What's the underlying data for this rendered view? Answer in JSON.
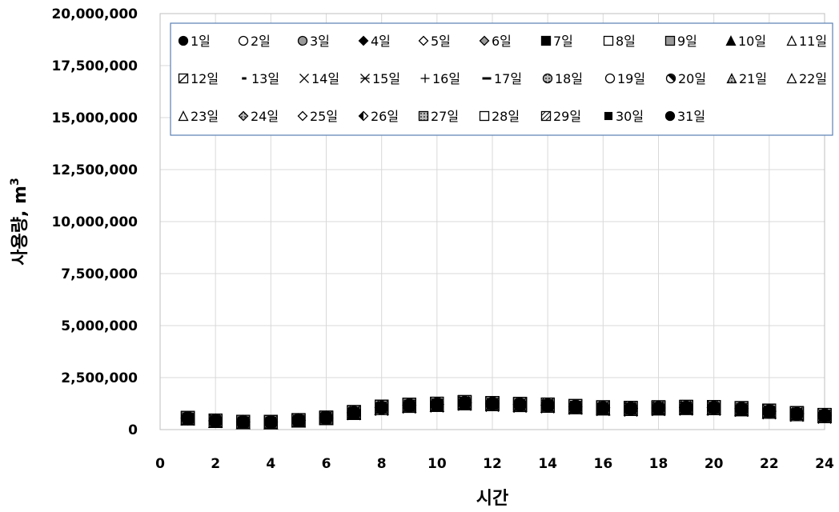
{
  "chart_data": {
    "type": "scatter",
    "title": "",
    "xlabel": "시간",
    "ylabel": "사용량, m³",
    "xlim": [
      0,
      24
    ],
    "ylim": [
      0,
      20000000
    ],
    "x_ticks": [
      "0",
      "2",
      "4",
      "6",
      "8",
      "10",
      "12",
      "14",
      "16",
      "18",
      "20",
      "22",
      "24"
    ],
    "y_ticks": [
      "0",
      "2,500,000",
      "5,000,000",
      "7,500,000",
      "10,000,000",
      "12,500,000",
      "15,000,000",
      "17,500,000",
      "20,000,000"
    ],
    "grid": true,
    "legend_position": "top",
    "x": [
      1,
      2,
      3,
      4,
      5,
      6,
      7,
      8,
      9,
      10,
      11,
      12,
      13,
      14,
      15,
      16,
      17,
      18,
      19,
      20,
      21,
      22,
      23,
      24
    ],
    "series": [
      {
        "name": "1일",
        "marker": "circle-filled",
        "values": [
          550000,
          420000,
          360000,
          360000,
          440000,
          560000,
          800000,
          1050000,
          1150000,
          1200000,
          1280000,
          1230000,
          1200000,
          1170000,
          1100000,
          1040000,
          1010000,
          1040000,
          1060000,
          1050000,
          1000000,
          880000,
          760000,
          670000
        ]
      },
      {
        "name": "2일",
        "marker": "circle-open",
        "values": [
          560000,
          430000,
          370000,
          370000,
          450000,
          570000,
          820000,
          1080000,
          1170000,
          1220000,
          1300000,
          1250000,
          1210000,
          1180000,
          1110000,
          1050000,
          1020000,
          1050000,
          1070000,
          1060000,
          1010000,
          890000,
          770000,
          680000
        ]
      },
      {
        "name": "3일",
        "marker": "circle-gray",
        "values": [
          540000,
          420000,
          360000,
          355000,
          440000,
          560000,
          810000,
          1060000,
          1160000,
          1210000,
          1290000,
          1240000,
          1200000,
          1170000,
          1100000,
          1040000,
          1010000,
          1040000,
          1060000,
          1050000,
          1000000,
          880000,
          760000,
          670000
        ]
      },
      {
        "name": "4일",
        "marker": "diamond-filled",
        "values": [
          550000,
          425000,
          365000,
          360000,
          445000,
          565000,
          815000,
          1070000,
          1165000,
          1215000,
          1295000,
          1245000,
          1205000,
          1175000,
          1105000,
          1045000,
          1015000,
          1045000,
          1065000,
          1055000,
          1005000,
          885000,
          765000,
          675000
        ]
      },
      {
        "name": "5일",
        "marker": "diamond-open",
        "values": [
          545000,
          420000,
          360000,
          358000,
          442000,
          562000,
          812000,
          1065000,
          1162000,
          1212000,
          1292000,
          1242000,
          1202000,
          1172000,
          1102000,
          1042000,
          1012000,
          1042000,
          1062000,
          1052000,
          1002000,
          882000,
          762000,
          672000
        ]
      },
      {
        "name": "6일",
        "marker": "diamond-gray",
        "values": [
          555000,
          428000,
          368000,
          362000,
          448000,
          568000,
          818000,
          1075000,
          1168000,
          1218000,
          1298000,
          1248000,
          1208000,
          1178000,
          1108000,
          1048000,
          1018000,
          1048000,
          1068000,
          1058000,
          1008000,
          888000,
          768000,
          678000
        ]
      },
      {
        "name": "7일",
        "marker": "square-filled",
        "values": [
          560000,
          430000,
          370000,
          365000,
          450000,
          570000,
          830000,
          1090000,
          1180000,
          1230000,
          1310000,
          1260000,
          1220000,
          1190000,
          1120000,
          1060000,
          1030000,
          1060000,
          1080000,
          1070000,
          1020000,
          900000,
          780000,
          690000
        ]
      },
      {
        "name": "8일",
        "marker": "square-open",
        "values": [
          565000,
          435000,
          375000,
          370000,
          455000,
          575000,
          840000,
          1100000,
          1190000,
          1240000,
          1320000,
          1270000,
          1230000,
          1200000,
          1130000,
          1070000,
          1040000,
          1070000,
          1090000,
          1080000,
          1030000,
          910000,
          790000,
          700000
        ]
      },
      {
        "name": "9일",
        "marker": "square-gray",
        "values": [
          560000,
          432000,
          372000,
          367000,
          452000,
          572000,
          835000,
          1095000,
          1185000,
          1235000,
          1315000,
          1265000,
          1225000,
          1195000,
          1125000,
          1065000,
          1035000,
          1065000,
          1085000,
          1075000,
          1025000,
          905000,
          785000,
          695000
        ]
      },
      {
        "name": "10일",
        "marker": "triangle-filled",
        "values": [
          540000,
          415000,
          355000,
          350000,
          435000,
          555000,
          800000,
          1040000,
          1140000,
          1190000,
          1270000,
          1220000,
          1180000,
          1150000,
          1080000,
          1020000,
          990000,
          1020000,
          1040000,
          1030000,
          980000,
          860000,
          740000,
          650000
        ]
      },
      {
        "name": "11일",
        "marker": "triangle-open",
        "values": [
          545000,
          418000,
          358000,
          353000,
          438000,
          558000,
          805000,
          1045000,
          1145000,
          1195000,
          1275000,
          1225000,
          1185000,
          1155000,
          1085000,
          1025000,
          995000,
          1025000,
          1045000,
          1035000,
          985000,
          865000,
          745000,
          655000
        ]
      },
      {
        "name": "12일",
        "marker": "square-x",
        "values": [
          570000,
          440000,
          380000,
          375000,
          460000,
          580000,
          850000,
          1110000,
          1200000,
          1250000,
          1330000,
          1280000,
          1240000,
          1210000,
          1140000,
          1080000,
          1050000,
          1080000,
          1100000,
          1090000,
          1040000,
          920000,
          800000,
          710000
        ]
      },
      {
        "name": "13일",
        "marker": "dash-short",
        "values": [
          520000,
          400000,
          340000,
          335000,
          420000,
          540000,
          780000,
          1010000,
          1110000,
          1160000,
          1240000,
          1190000,
          1150000,
          1120000,
          1050000,
          990000,
          960000,
          990000,
          1010000,
          1000000,
          950000,
          830000,
          710000,
          620000
        ]
      },
      {
        "name": "14일",
        "marker": "x",
        "values": [
          510000,
          395000,
          335000,
          330000,
          415000,
          535000,
          770000,
          980000,
          1090000,
          1140000,
          1220000,
          1170000,
          1130000,
          1100000,
          1030000,
          970000,
          940000,
          970000,
          990000,
          980000,
          930000,
          810000,
          690000,
          600000
        ]
      },
      {
        "name": "15일",
        "marker": "asterisk",
        "values": [
          515000,
          398000,
          338000,
          333000,
          418000,
          538000,
          775000,
          990000,
          1100000,
          1150000,
          1230000,
          1180000,
          1140000,
          1110000,
          1040000,
          980000,
          950000,
          980000,
          1000000,
          990000,
          940000,
          820000,
          700000,
          610000
        ]
      },
      {
        "name": "16일",
        "marker": "plus",
        "values": [
          525000,
          402000,
          342000,
          337000,
          422000,
          542000,
          785000,
          1020000,
          1120000,
          1170000,
          1250000,
          1200000,
          1160000,
          1130000,
          1060000,
          1000000,
          970000,
          1000000,
          1020000,
          1010000,
          960000,
          840000,
          720000,
          630000
        ]
      },
      {
        "name": "17일",
        "marker": "dash-long",
        "values": [
          530000,
          405000,
          345000,
          340000,
          425000,
          545000,
          790000,
          1030000,
          1130000,
          1180000,
          1260000,
          1210000,
          1170000,
          1140000,
          1070000,
          1010000,
          980000,
          1010000,
          1030000,
          1020000,
          970000,
          850000,
          730000,
          640000
        ]
      },
      {
        "name": "18일",
        "marker": "circle-pattern",
        "values": [
          555000,
          426000,
          366000,
          361000,
          446000,
          566000,
          816000,
          1072000,
          1166000,
          1216000,
          1296000,
          1246000,
          1206000,
          1176000,
          1106000,
          1046000,
          1016000,
          1046000,
          1066000,
          1056000,
          1006000,
          886000,
          766000,
          676000
        ]
      },
      {
        "name": "19일",
        "marker": "circle-open",
        "values": [
          550000,
          424000,
          364000,
          359000,
          444000,
          564000,
          814000,
          1068000,
          1164000,
          1214000,
          1294000,
          1244000,
          1204000,
          1174000,
          1104000,
          1044000,
          1014000,
          1044000,
          1064000,
          1054000,
          1004000,
          884000,
          764000,
          674000
        ]
      },
      {
        "name": "20일",
        "marker": "circle-half",
        "values": [
          548000,
          422000,
          362000,
          357000,
          442000,
          562000,
          812000,
          1064000,
          1162000,
          1212000,
          1292000,
          1242000,
          1202000,
          1172000,
          1102000,
          1042000,
          1012000,
          1042000,
          1062000,
          1052000,
          1002000,
          882000,
          762000,
          672000
        ]
      },
      {
        "name": "21일",
        "marker": "triangle-pattern",
        "values": [
          542000,
          416000,
          356000,
          351000,
          436000,
          556000,
          802000,
          1042000,
          1142000,
          1192000,
          1272000,
          1222000,
          1182000,
          1152000,
          1082000,
          1022000,
          992000,
          1022000,
          1042000,
          1032000,
          982000,
          862000,
          742000,
          652000
        ]
      },
      {
        "name": "22일",
        "marker": "triangle-open",
        "values": [
          538000,
          414000,
          354000,
          349000,
          434000,
          554000,
          798000,
          1038000,
          1138000,
          1188000,
          1268000,
          1218000,
          1178000,
          1148000,
          1078000,
          1018000,
          988000,
          1018000,
          1038000,
          1028000,
          978000,
          858000,
          738000,
          648000
        ]
      },
      {
        "name": "23일",
        "marker": "triangle-open",
        "values": [
          535000,
          412000,
          352000,
          347000,
          432000,
          552000,
          795000,
          1035000,
          1135000,
          1185000,
          1265000,
          1215000,
          1175000,
          1145000,
          1075000,
          1015000,
          985000,
          1015000,
          1035000,
          1025000,
          975000,
          855000,
          735000,
          645000
        ]
      },
      {
        "name": "24일",
        "marker": "diamond-pattern",
        "values": [
          552000,
          427000,
          367000,
          362000,
          447000,
          567000,
          817000,
          1073000,
          1167000,
          1217000,
          1297000,
          1247000,
          1207000,
          1177000,
          1107000,
          1047000,
          1017000,
          1047000,
          1067000,
          1057000,
          1007000,
          887000,
          767000,
          677000
        ]
      },
      {
        "name": "25일",
        "marker": "diamond-open",
        "values": [
          547000,
          421000,
          361000,
          356000,
          441000,
          561000,
          811000,
          1062000,
          1161000,
          1211000,
          1291000,
          1241000,
          1201000,
          1171000,
          1101000,
          1041000,
          1011000,
          1041000,
          1061000,
          1051000,
          1001000,
          881000,
          761000,
          671000
        ]
      },
      {
        "name": "26일",
        "marker": "diamond-half",
        "values": [
          549000,
          423000,
          363000,
          358000,
          443000,
          563000,
          813000,
          1066000,
          1163000,
          1213000,
          1293000,
          1243000,
          1203000,
          1173000,
          1103000,
          1043000,
          1013000,
          1043000,
          1063000,
          1053000,
          1003000,
          883000,
          763000,
          673000
        ]
      },
      {
        "name": "27일",
        "marker": "square-pattern",
        "values": [
          562000,
          433000,
          373000,
          368000,
          453000,
          573000,
          838000,
          1098000,
          1188000,
          1238000,
          1318000,
          1268000,
          1228000,
          1198000,
          1128000,
          1068000,
          1038000,
          1068000,
          1088000,
          1078000,
          1028000,
          908000,
          788000,
          698000
        ]
      },
      {
        "name": "28일",
        "marker": "square-open",
        "values": [
          568000,
          438000,
          378000,
          373000,
          458000,
          578000,
          845000,
          1105000,
          1195000,
          1245000,
          1325000,
          1275000,
          1235000,
          1205000,
          1135000,
          1075000,
          1045000,
          1075000,
          1095000,
          1085000,
          1035000,
          915000,
          795000,
          705000
        ]
      },
      {
        "name": "29일",
        "marker": "square-hatch",
        "values": [
          566000,
          436000,
          376000,
          371000,
          456000,
          576000,
          842000,
          1102000,
          1192000,
          1242000,
          1322000,
          1272000,
          1232000,
          1202000,
          1132000,
          1072000,
          1042000,
          1072000,
          1092000,
          1082000,
          1032000,
          912000,
          792000,
          702000
        ]
      },
      {
        "name": "30일",
        "marker": "square-small-filled",
        "values": [
          558000,
          429000,
          369000,
          364000,
          449000,
          569000,
          825000,
          1085000,
          1175000,
          1225000,
          1305000,
          1255000,
          1215000,
          1185000,
          1115000,
          1055000,
          1025000,
          1055000,
          1075000,
          1065000,
          1015000,
          895000,
          775000,
          685000
        ]
      },
      {
        "name": "31일",
        "marker": "circle-filled",
        "values": [
          552000,
          424000,
          364000,
          360000,
          444000,
          564000,
          808000,
          1058000,
          1158000,
          1208000,
          1288000,
          1238000,
          1198000,
          1168000,
          1098000,
          1038000,
          1008000,
          1038000,
          1058000,
          1048000,
          998000,
          878000,
          758000,
          668000
        ]
      }
    ]
  }
}
